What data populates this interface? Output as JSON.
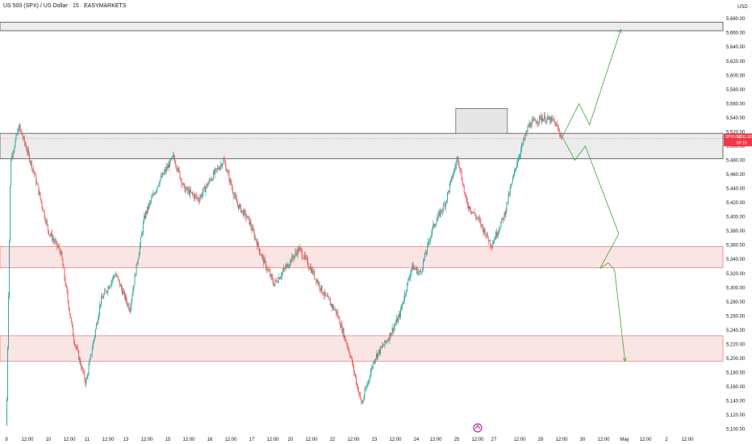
{
  "header": {
    "title": "US 500 (SPX) / US Dollar · 15 · EASYMARKETS",
    "currency": "USD"
  },
  "price_tag": {
    "symbol": "SPXUSD",
    "price": "5,511.00",
    "countdown": "09:15",
    "color": "#f23645"
  },
  "colors": {
    "up_candle": "#26a69a",
    "down_candle": "#ef5350",
    "projection": "#4caf50",
    "resistance_zone": "#e0e0e0",
    "support_zone": "#f9dede"
  },
  "chart_data": {
    "type": "candlestick",
    "title": "US 500 (SPX) / US Dollar · 15 · EASYMARKETS",
    "y_ticks": [
      "5,680.00",
      "5,660.00",
      "5,640.00",
      "5,620.00",
      "5,600.00",
      "5,580.00",
      "5,560.00",
      "5,540.00",
      "5,520.00",
      "5,500.00",
      "5,480.00",
      "5,460.00",
      "5,440.00",
      "5,420.00",
      "5,400.00",
      "5,380.00",
      "5,360.00",
      "5,340.00",
      "5,320.00",
      "5,300.00",
      "5,280.00",
      "5,260.00",
      "5,240.00",
      "5,220.00",
      "5,200.00",
      "5,180.00",
      "5,160.00",
      "5,140.00",
      "5,120.00",
      "5,100.00"
    ],
    "x_ticks": [
      "9",
      "12:00",
      "10",
      "12:00",
      "11",
      "12:00",
      "13",
      "12:00",
      "15",
      "12:00",
      "16",
      "12:00",
      "17",
      "12:00",
      "20",
      "12:00",
      "22",
      "12:00",
      "23",
      "12:00",
      "24",
      "12:00",
      "25",
      "12:00",
      "27",
      "12:00",
      "29",
      "12:00",
      "30",
      "12:00",
      "May",
      "12:00",
      "2",
      "12:00"
    ],
    "ylim": [
      5095,
      5695
    ],
    "price_path": [
      [
        0.0,
        5105
      ],
      [
        0.2,
        5480
      ],
      [
        0.6,
        5528
      ],
      [
        1.3,
        5465
      ],
      [
        2.0,
        5380
      ],
      [
        2.6,
        5350
      ],
      [
        3.2,
        5230
      ],
      [
        3.8,
        5165
      ],
      [
        4.5,
        5280
      ],
      [
        5.2,
        5320
      ],
      [
        5.9,
        5270
      ],
      [
        6.6,
        5400
      ],
      [
        7.3,
        5450
      ],
      [
        8.0,
        5485
      ],
      [
        8.5,
        5440
      ],
      [
        9.2,
        5425
      ],
      [
        9.8,
        5455
      ],
      [
        10.4,
        5480
      ],
      [
        11.0,
        5420
      ],
      [
        11.6,
        5395
      ],
      [
        12.2,
        5345
      ],
      [
        12.8,
        5305
      ],
      [
        13.4,
        5330
      ],
      [
        14.0,
        5355
      ],
      [
        14.6,
        5325
      ],
      [
        15.2,
        5290
      ],
      [
        15.8,
        5265
      ],
      [
        16.4,
        5210
      ],
      [
        17.0,
        5135
      ],
      [
        17.6,
        5200
      ],
      [
        18.2,
        5225
      ],
      [
        18.8,
        5260
      ],
      [
        19.4,
        5330
      ],
      [
        19.8,
        5320
      ],
      [
        20.4,
        5385
      ],
      [
        21.0,
        5420
      ],
      [
        21.6,
        5485
      ],
      [
        22.0,
        5420
      ],
      [
        22.6,
        5395
      ],
      [
        23.2,
        5360
      ],
      [
        23.8,
        5400
      ],
      [
        24.4,
        5475
      ],
      [
        25.0,
        5530
      ],
      [
        25.6,
        5540
      ],
      [
        26.2,
        5535
      ],
      [
        26.6,
        5511
      ]
    ],
    "zones": [
      {
        "type": "resistance",
        "from": 5663,
        "to": 5675
      },
      {
        "type": "resistance",
        "from": 5482,
        "to": 5518
      },
      {
        "type": "support",
        "from": 5328,
        "to": 5358
      },
      {
        "type": "support",
        "from": 5196,
        "to": 5232
      },
      {
        "type": "consolidation",
        "from": 5518,
        "to": 5553
      }
    ],
    "projections": [
      {
        "name": "bullish",
        "points": [
          [
            26.6,
            5513
          ],
          [
            27.4,
            5560
          ],
          [
            27.9,
            5530
          ],
          [
            29.4,
            5665
          ]
        ]
      },
      {
        "name": "bearish",
        "points": [
          [
            26.6,
            5513
          ],
          [
            27.2,
            5480
          ],
          [
            27.7,
            5500
          ],
          [
            29.3,
            5376
          ],
          [
            28.4,
            5327
          ],
          [
            28.8,
            5335
          ],
          [
            29.1,
            5325
          ],
          [
            29.6,
            5196
          ]
        ]
      }
    ],
    "current_price": 5511.0
  }
}
